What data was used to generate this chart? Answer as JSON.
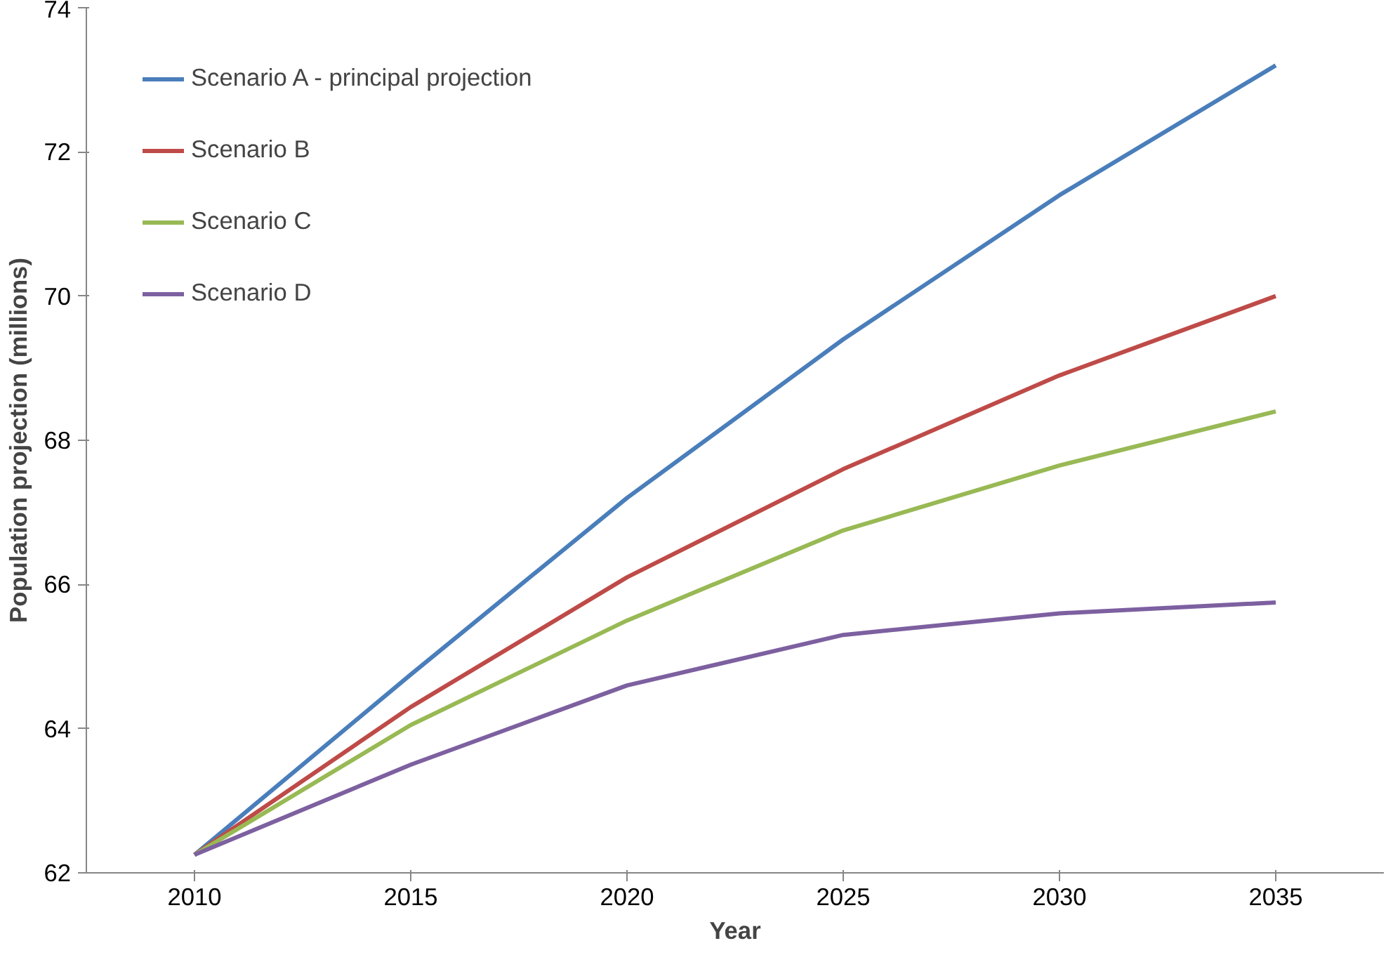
{
  "chart_data": {
    "type": "line",
    "xlabel": "Year",
    "ylabel": "Population projection (millions)",
    "categories": [
      "2010",
      "2015",
      "2020",
      "2025",
      "2030",
      "2035"
    ],
    "series": [
      {
        "name": "Scenario A - principal projection",
        "color": "#4a7ebb",
        "values": [
          62.25,
          64.75,
          67.2,
          69.4,
          71.4,
          73.2
        ]
      },
      {
        "name": "Scenario B",
        "color": "#be4b48",
        "values": [
          62.25,
          64.3,
          66.1,
          67.6,
          68.9,
          70.0
        ]
      },
      {
        "name": "Scenario C",
        "color": "#98b954",
        "values": [
          62.25,
          64.05,
          65.5,
          66.75,
          67.65,
          68.4
        ]
      },
      {
        "name": "Scenario D",
        "color": "#7d60a0",
        "values": [
          62.25,
          63.5,
          64.6,
          65.3,
          65.6,
          65.75
        ]
      }
    ],
    "ylim": [
      62,
      74
    ],
    "yticks": [
      62,
      64,
      66,
      68,
      70,
      72,
      74
    ],
    "grid": false,
    "legend": "top left",
    "marker": "none",
    "line_style": "solid"
  }
}
